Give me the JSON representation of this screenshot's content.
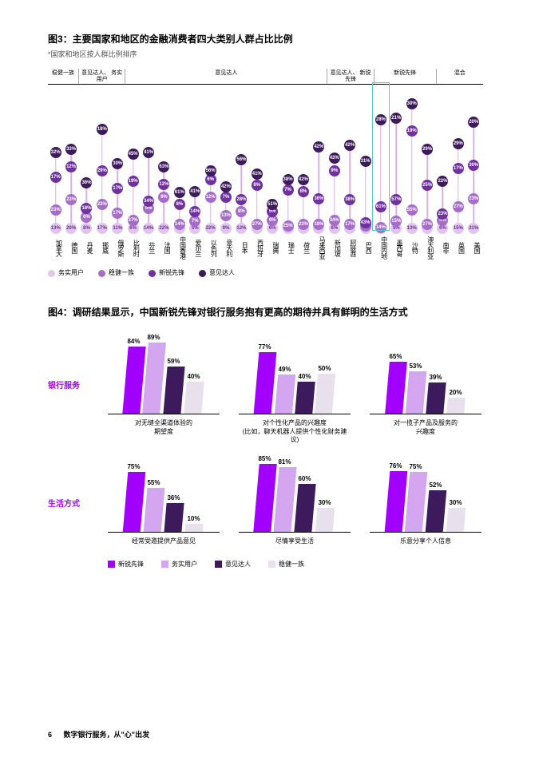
{
  "chart3": {
    "title": "图3：主要国家和地区的金融消费者四大类别人群占比比例",
    "subtitle": "*国家和地区按人群比例排序",
    "dot_text_color_dark": "#ffffff",
    "dot_text_color_light": "#6b2e8f",
    "groups": [
      {
        "label": "稳健一族",
        "span": 2
      },
      {
        "label": "意见达人、\n务实用户",
        "span": 3
      },
      {
        "label": "意见达人",
        "span": 13
      },
      {
        "label": "意见达人、\n新锐先锋",
        "span": 3
      },
      {
        "label": "新锐先锋",
        "span": 4
      },
      {
        "label": "混合",
        "span": 3
      }
    ],
    "colors": {
      "pragmatist": "#e0c5ec",
      "traditionalist": "#a56cc9",
      "pioneer": "#7030a0",
      "skeptic": "#3d1a5b"
    },
    "countries": [
      {
        "name": "加拿大",
        "highlighted": false,
        "v": [
          13,
          23,
          17,
          32
        ]
      },
      {
        "name": "德国",
        "highlighted": false,
        "v": [
          20,
          23,
          12,
          33
        ]
      },
      {
        "name": "丹麦",
        "highlighted": false,
        "v": [
          8,
          6,
          18,
          36
        ]
      },
      {
        "name": "挪威",
        "highlighted": false,
        "v": [
          17,
          23,
          29,
          18
        ]
      },
      {
        "name": "俄罗斯",
        "highlighted": false,
        "v": [
          11,
          17,
          17,
          30
        ]
      },
      {
        "name": "比利时",
        "highlighted": false,
        "v": [
          6,
          27,
          19,
          45
        ]
      },
      {
        "name": "芬兰",
        "highlighted": false,
        "v": [
          14,
          5,
          34,
          41
        ]
      },
      {
        "name": "法国",
        "highlighted": false,
        "v": [
          22,
          9,
          12,
          63
        ]
      },
      {
        "name": "中国香港",
        "highlighted": false,
        "v": [
          3,
          14,
          8,
          61
        ]
      },
      {
        "name": "爱尔兰",
        "highlighted": false,
        "v": [
          5,
          7,
          14,
          41
        ]
      },
      {
        "name": "以色列",
        "highlighted": false,
        "v": [
          22,
          12,
          6,
          56
        ]
      },
      {
        "name": "意大利",
        "highlighted": false,
        "v": [
          9,
          13,
          7,
          42
        ]
      },
      {
        "name": "日本",
        "highlighted": false,
        "v": [
          12,
          8,
          28,
          56
        ]
      },
      {
        "name": "西班牙",
        "highlighted": false,
        "v": [
          3,
          27,
          8,
          41
        ]
      },
      {
        "name": "瑞典",
        "highlighted": false,
        "v": [
          6,
          6,
          5,
          51
        ]
      },
      {
        "name": "瑞士",
        "highlighted": false,
        "v": [
          2,
          25,
          7,
          38
        ]
      },
      {
        "name": "荷兰",
        "highlighted": false,
        "v": [
          3,
          23,
          8,
          42
        ]
      },
      {
        "name": "马来西亚",
        "highlighted": false,
        "v": [
          3,
          18,
          36,
          42
        ]
      },
      {
        "name": "新加坡",
        "highlighted": false,
        "v": [
          6,
          34,
          9,
          43
        ]
      },
      {
        "name": "阿联酋",
        "highlighted": false,
        "v": [
          3,
          17,
          38,
          42
        ]
      },
      {
        "name": "巴西",
        "highlighted": false,
        "v": [
          2,
          2,
          43,
          31
        ]
      },
      {
        "name": "中国内地",
        "highlighted": true,
        "v": [
          1,
          14,
          61,
          28
        ]
      },
      {
        "name": "墨西哥",
        "highlighted": false,
        "v": [
          5,
          15,
          57,
          21
        ]
      },
      {
        "name": "沙特",
        "highlighted": false,
        "v": [
          13,
          55,
          19,
          30
        ]
      },
      {
        "name": "澳大利亚",
        "highlighted": false,
        "v": [
          3,
          27,
          25,
          29
        ]
      },
      {
        "name": "南非",
        "highlighted": false,
        "v": [
          6,
          4,
          23,
          22
        ]
      },
      {
        "name": "英国",
        "highlighted": false,
        "v": [
          15,
          27,
          17,
          29
        ]
      },
      {
        "name": "美国",
        "highlighted": false,
        "v": [
          21,
          23,
          30,
          20
        ]
      }
    ],
    "legend": [
      {
        "label": "务实用户",
        "color": "#e0c5ec"
      },
      {
        "label": "稳健一族",
        "color": "#a56cc9"
      },
      {
        "label": "新锐先锋",
        "color": "#7030a0"
      },
      {
        "label": "意见达人",
        "color": "#3d1a5b"
      }
    ]
  },
  "chart4": {
    "title": "图4：调研结果显示，中国新锐先锋对银行服务抱有更高的期待并具有鲜明的生活方式",
    "row_labels": [
      "银行服务",
      "生活方式"
    ],
    "bar_max": 100,
    "series_colors": [
      "#a100ff",
      "#d5a6f0",
      "#3d1a5b",
      "#e8e0ec"
    ],
    "rows": [
      [
        {
          "title": "对无缝全渠道体验的\n期望度",
          "v": [
            84,
            89,
            59,
            40
          ]
        },
        {
          "title": "对个性化产品的兴趣度\n(比如，聊天机器人提供个性化财务建议)",
          "v": [
            77,
            49,
            40,
            50
          ]
        },
        {
          "title": "对一揽子产品及服务的\n兴趣度",
          "v": [
            65,
            53,
            39,
            20
          ]
        }
      ],
      [
        {
          "title": "经常受邀提供产品意见",
          "v": [
            75,
            55,
            36,
            10
          ]
        },
        {
          "title": "尽情享受生活",
          "v": [
            85,
            81,
            60,
            30
          ]
        },
        {
          "title": "乐意分享个人信息",
          "v": [
            76,
            75,
            52,
            30
          ]
        }
      ]
    ],
    "legend": [
      {
        "label": "新锐先锋",
        "color": "#a100ff"
      },
      {
        "label": "务实用户",
        "color": "#d5a6f0"
      },
      {
        "label": "意见达人",
        "color": "#3d1a5b"
      },
      {
        "label": "稳健一族",
        "color": "#e8e0ec"
      }
    ]
  },
  "footer": {
    "page": "6",
    "text": "数字银行服务，从\"心\"出发"
  }
}
